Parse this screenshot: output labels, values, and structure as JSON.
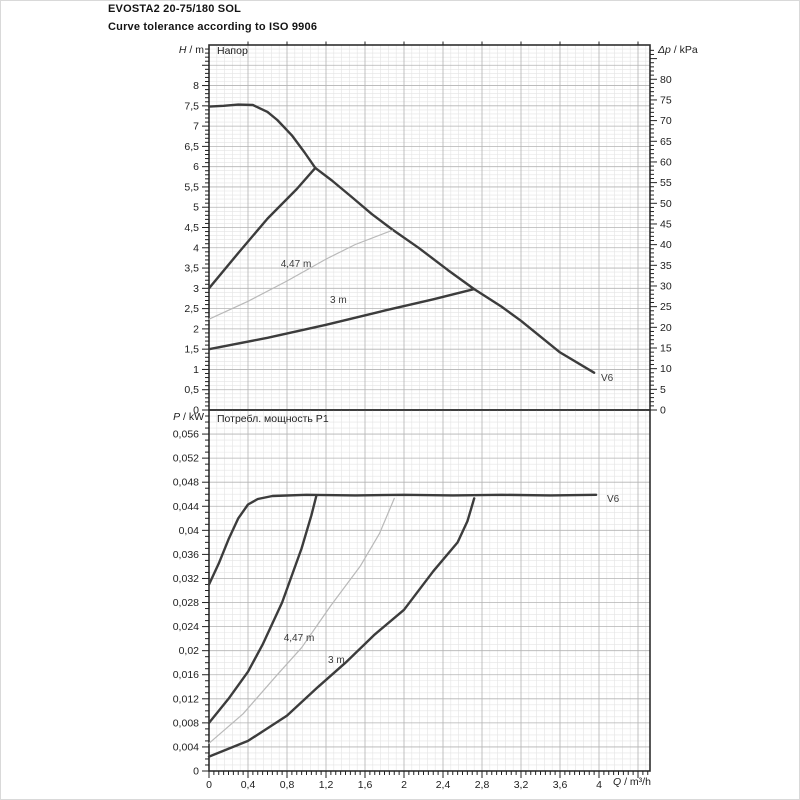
{
  "page": {
    "title": "EVOSTA2 20-75/180 SOL",
    "subtitle": "Curve tolerance according to ISO 9906"
  },
  "colors": {
    "curve_dark": "#3c3c3c",
    "curve_light": "#b9b9b9",
    "grid_minor": "#e4e4e4",
    "grid_major": "#b3b3b3",
    "frame": "#2e2e2e",
    "tick": "#222222",
    "text": "#1d1d1d"
  },
  "chart_data": [
    {
      "type": "line",
      "title": "Напор",
      "ylabel": "H / m",
      "ylabel_var": "H",
      "ylabel_unit": " / m",
      "y2label": "Δp / kPa",
      "y2label_var": "Δp",
      "y2label_unit": " / kPa",
      "xlabel": "Q / m³/h",
      "xlim": [
        0,
        4.52
      ],
      "ylim": [
        0,
        9
      ],
      "y2lim": [
        0,
        88
      ],
      "x_major": 0.4,
      "x_minor": 0.08,
      "y_major": 0.5,
      "y_minor": 0.1,
      "y2_major": 5,
      "y2_minor": 1,
      "grid": true,
      "legend": "labels on curves",
      "y_ticks": [
        [
          0,
          "0"
        ],
        [
          0.5,
          "0,5"
        ],
        [
          1,
          "1"
        ],
        [
          1.5,
          "1,5"
        ],
        [
          2,
          "2"
        ],
        [
          2.5,
          "2,5"
        ],
        [
          3,
          "3"
        ],
        [
          3.5,
          "3,5"
        ],
        [
          4,
          "4"
        ],
        [
          4.5,
          "4,5"
        ],
        [
          5,
          "5"
        ],
        [
          5.5,
          "5,5"
        ],
        [
          6,
          "6"
        ],
        [
          6.5,
          "6,5"
        ],
        [
          7,
          "7"
        ],
        [
          7.5,
          "7,5"
        ],
        [
          8,
          "8"
        ]
      ],
      "y2_ticks": [
        [
          0,
          "0"
        ],
        [
          5,
          "5"
        ],
        [
          10,
          "10"
        ],
        [
          15,
          "15"
        ],
        [
          20,
          "20"
        ],
        [
          25,
          "25"
        ],
        [
          30,
          "30"
        ],
        [
          35,
          "35"
        ],
        [
          40,
          "40"
        ],
        [
          45,
          "45"
        ],
        [
          50,
          "50"
        ],
        [
          55,
          "55"
        ],
        [
          60,
          "60"
        ],
        [
          65,
          "65"
        ],
        [
          70,
          "70"
        ],
        [
          75,
          "75"
        ],
        [
          80,
          "80"
        ]
      ],
      "series": [
        {
          "name": "max-speed-head-curve",
          "label": "V6",
          "color": "#3c3c3c",
          "width": 2.4,
          "points": [
            [
              0,
              7.48
            ],
            [
              0.15,
              7.5
            ],
            [
              0.3,
              7.53
            ],
            [
              0.45,
              7.52
            ],
            [
              0.6,
              7.35
            ],
            [
              0.7,
              7.15
            ],
            [
              0.85,
              6.77
            ],
            [
              0.98,
              6.35
            ],
            [
              1.09,
              5.97
            ],
            [
              1.26,
              5.66
            ],
            [
              1.47,
              5.24
            ],
            [
              1.67,
              4.83
            ],
            [
              1.88,
              4.45
            ],
            [
              2.15,
              4.0
            ],
            [
              2.45,
              3.45
            ],
            [
              2.72,
              2.98
            ],
            [
              3.0,
              2.55
            ],
            [
              3.2,
              2.2
            ],
            [
              3.6,
              1.42
            ],
            [
              3.95,
              0.92
            ]
          ]
        },
        {
          "name": "control-range-upper-boundary",
          "label": "",
          "color": "#3c3c3c",
          "width": 2.4,
          "points": [
            [
              0,
              3.0
            ],
            [
              0.3,
              3.87
            ],
            [
              0.6,
              4.72
            ],
            [
              0.9,
              5.45
            ],
            [
              1.09,
              5.97
            ]
          ]
        },
        {
          "name": "curve-4-47-m",
          "label": "4,47 m",
          "color": "#b9b9b9",
          "width": 1.2,
          "points": [
            [
              0,
              2.24
            ],
            [
              0.4,
              2.68
            ],
            [
              0.8,
              3.18
            ],
            [
              1.2,
              3.72
            ],
            [
              1.5,
              4.08
            ],
            [
              1.88,
              4.43
            ]
          ]
        },
        {
          "name": "curve-3-m",
          "label": "3 m",
          "color": "#3c3c3c",
          "width": 2.4,
          "points": [
            [
              0,
              1.5
            ],
            [
              0.6,
              1.78
            ],
            [
              1.2,
              2.1
            ],
            [
              1.8,
              2.45
            ],
            [
              2.3,
              2.73
            ],
            [
              2.72,
              2.98
            ]
          ]
        }
      ]
    },
    {
      "type": "line",
      "title": "Потребл. мощность P1",
      "ylabel": "P / kW",
      "ylabel_var": "P",
      "ylabel_unit": " / kW",
      "xlabel": "Q / m³/h",
      "xlabel_var": "Q",
      "xlabel_unit": " / m³/h",
      "xlim": [
        0,
        4.52
      ],
      "ylim": [
        0,
        0.06
      ],
      "x_major": 0.4,
      "x_minor": 0.08,
      "x_tick_minor": 0.05,
      "y_major": 0.004,
      "y_minor": 0.001,
      "grid": true,
      "x_ticks": [
        [
          0,
          "0"
        ],
        [
          0.4,
          "0,4"
        ],
        [
          0.8,
          "0,8"
        ],
        [
          1.2,
          "1,2"
        ],
        [
          1.6,
          "1,6"
        ],
        [
          2,
          "2"
        ],
        [
          2.4,
          "2,4"
        ],
        [
          2.8,
          "2,8"
        ],
        [
          3.2,
          "3,2"
        ],
        [
          3.6,
          "3,6"
        ],
        [
          4,
          "4"
        ]
      ],
      "y_ticks": [
        [
          0,
          "0"
        ],
        [
          0.004,
          "0,004"
        ],
        [
          0.008,
          "0,008"
        ],
        [
          0.012,
          "0,012"
        ],
        [
          0.016,
          "0,016"
        ],
        [
          0.02,
          "0,02"
        ],
        [
          0.024,
          "0,024"
        ],
        [
          0.028,
          "0,028"
        ],
        [
          0.032,
          "0,032"
        ],
        [
          0.036,
          "0,036"
        ],
        [
          0.04,
          "0,04"
        ],
        [
          0.044,
          "0,044"
        ],
        [
          0.048,
          "0,048"
        ],
        [
          0.052,
          "0,052"
        ],
        [
          0.056,
          "0,056"
        ]
      ],
      "series": [
        {
          "name": "max-speed-power-curve",
          "label": "V6",
          "color": "#3c3c3c",
          "width": 2.4,
          "points": [
            [
              0,
              0.031
            ],
            [
              0.1,
              0.0345
            ],
            [
              0.2,
              0.0385
            ],
            [
              0.3,
              0.042
            ],
            [
              0.4,
              0.0443
            ],
            [
              0.5,
              0.0452
            ],
            [
              0.65,
              0.0457
            ],
            [
              1.0,
              0.0459
            ],
            [
              1.5,
              0.0458
            ],
            [
              2.0,
              0.0459
            ],
            [
              2.5,
              0.0458
            ],
            [
              3.0,
              0.0459
            ],
            [
              3.5,
              0.0458
            ],
            [
              3.97,
              0.0459
            ]
          ]
        },
        {
          "name": "power-upper-boundary",
          "label": "",
          "color": "#3c3c3c",
          "width": 2.4,
          "points": [
            [
              0,
              0.008
            ],
            [
              0.2,
              0.012
            ],
            [
              0.4,
              0.0165
            ],
            [
              0.55,
              0.021
            ],
            [
              0.75,
              0.028
            ],
            [
              0.95,
              0.037
            ],
            [
              1.05,
              0.0425
            ],
            [
              1.1,
              0.0457
            ]
          ]
        },
        {
          "name": "power-curve-4-47-m",
          "label": "4,47 m",
          "color": "#b9b9b9",
          "width": 1.2,
          "points": [
            [
              0,
              0.0046
            ],
            [
              0.35,
              0.0095
            ],
            [
              0.7,
              0.016
            ],
            [
              0.95,
              0.0205
            ],
            [
              1.25,
              0.0275
            ],
            [
              1.55,
              0.034
            ],
            [
              1.75,
              0.0395
            ],
            [
              1.9,
              0.0453
            ]
          ]
        },
        {
          "name": "power-curve-3-m",
          "label": "3 m",
          "color": "#3c3c3c",
          "width": 2.4,
          "points": [
            [
              0,
              0.0024
            ],
            [
              0.4,
              0.005
            ],
            [
              0.8,
              0.0092
            ],
            [
              1.12,
              0.014
            ],
            [
              1.4,
              0.018
            ],
            [
              1.7,
              0.0227
            ],
            [
              2.0,
              0.0268
            ],
            [
              2.3,
              0.0332
            ],
            [
              2.55,
              0.038
            ],
            [
              2.65,
              0.0415
            ],
            [
              2.72,
              0.0453
            ]
          ]
        }
      ]
    }
  ]
}
